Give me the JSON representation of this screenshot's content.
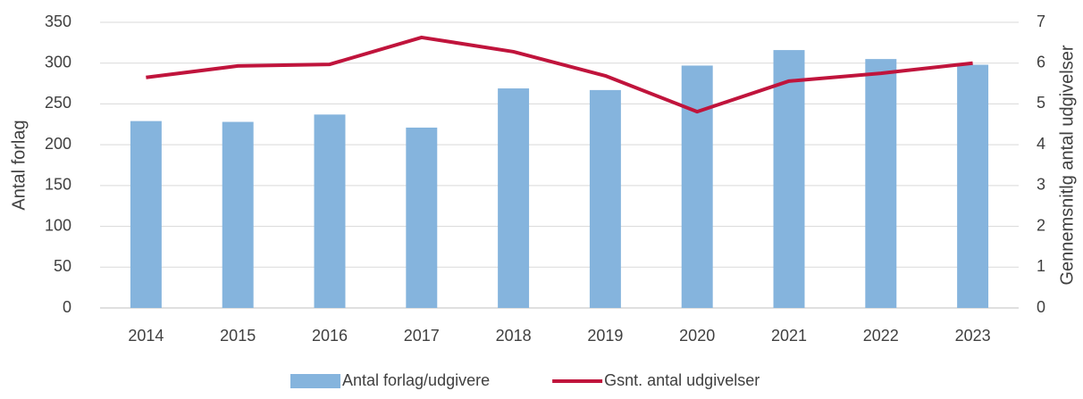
{
  "chart_data": {
    "type": "bar+line",
    "ylabel": "Antal forlag",
    "y2label": "Gennemsnitlg antal udgivelser",
    "categories": [
      "2014",
      "2015",
      "2016",
      "2017",
      "2018",
      "2019",
      "2020",
      "2021",
      "2022",
      "2023"
    ],
    "series": [
      {
        "name": "Antal forlag/udgivere",
        "type": "bar",
        "color": "#85b4dd",
        "values": [
          229,
          228,
          237,
          221,
          269,
          267,
          297,
          316,
          305,
          298
        ]
      },
      {
        "name": "Gsnt. antal udgivelser",
        "type": "line",
        "axis": "y2",
        "color": "#c0143c",
        "values": [
          5.65,
          5.93,
          5.97,
          6.63,
          6.28,
          5.69,
          4.81,
          5.56,
          5.75,
          6.0
        ]
      }
    ],
    "ylim": [
      0,
      350
    ],
    "yticks": [
      0,
      50,
      100,
      150,
      200,
      250,
      300,
      350
    ],
    "y2lim": [
      0,
      7
    ],
    "y2ticks": [
      0,
      1,
      2,
      3,
      4,
      5,
      6,
      7
    ],
    "grid": true,
    "legend": "bottom"
  }
}
